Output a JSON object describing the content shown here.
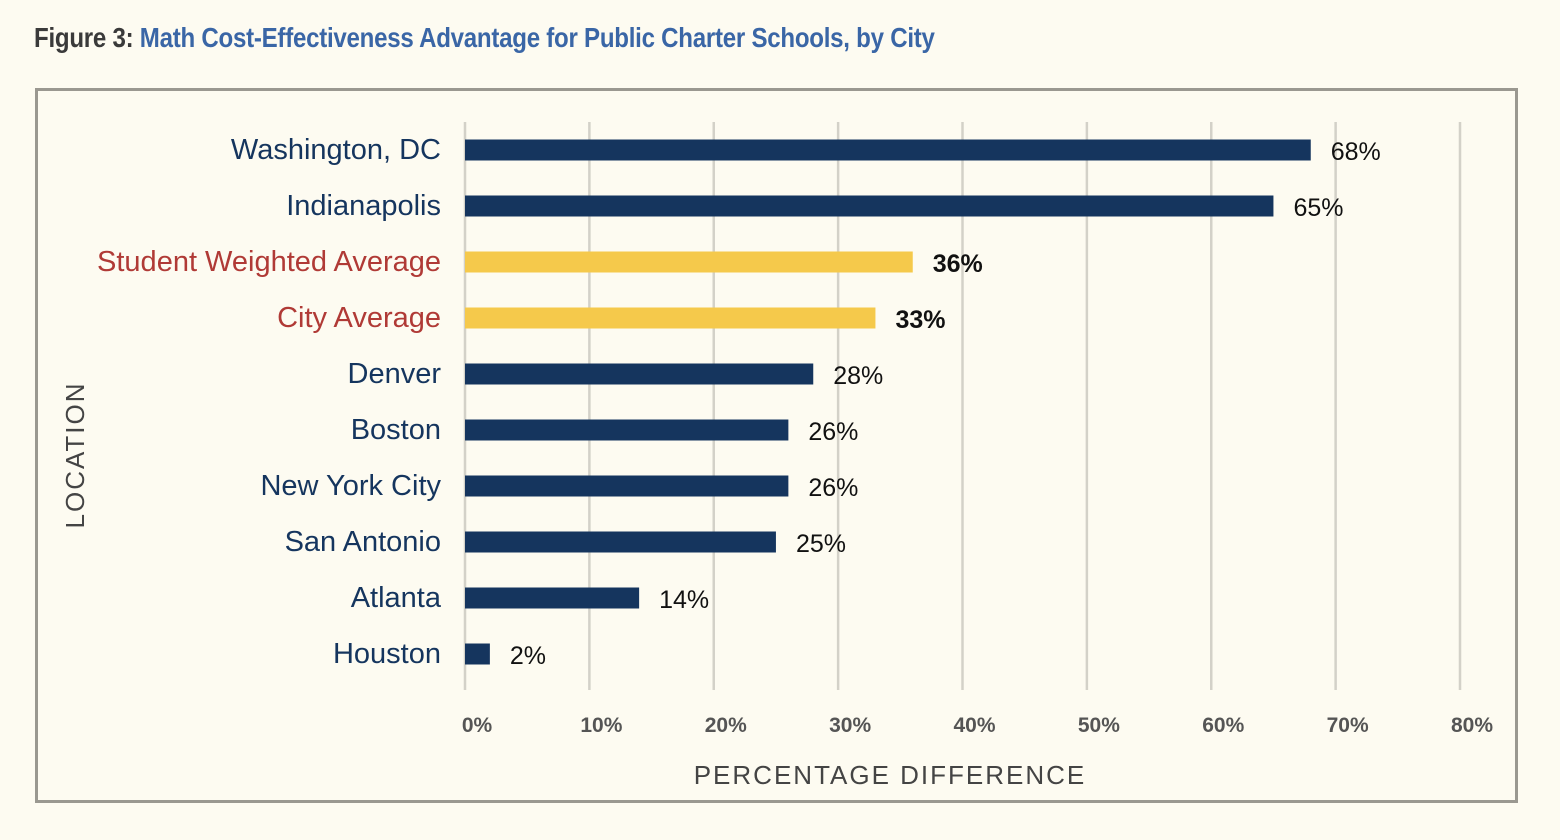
{
  "figure": {
    "label": "Figure 3:",
    "title": "Math Cost-Effectiveness Advantage for Public Charter Schools, by City"
  },
  "chart_data": {
    "type": "bar",
    "orientation": "horizontal",
    "xlabel": "PERCENTAGE DIFFERENCE",
    "ylabel": "LOCATION",
    "xlim": [
      0,
      80
    ],
    "xticks": [
      "0%",
      "10%",
      "20%",
      "30%",
      "40%",
      "50%",
      "60%",
      "70%",
      "80%"
    ],
    "grid": true,
    "categories": [
      "Washington, DC",
      "Indianapolis",
      "Student Weighted Average",
      "City Average",
      "Denver",
      "Boston",
      "New York City",
      "San Antonio",
      "Atlanta",
      "Houston"
    ],
    "values": [
      68,
      65,
      36,
      33,
      28,
      26,
      26,
      25,
      14,
      2
    ],
    "value_labels": [
      "68%",
      "65%",
      "36%",
      "33%",
      "28%",
      "26%",
      "26%",
      "25%",
      "14%",
      "2%"
    ],
    "highlight": [
      false,
      false,
      true,
      true,
      false,
      false,
      false,
      false,
      false,
      false
    ],
    "colors": {
      "bar": "#15355e",
      "highlight_bar": "#f5c94b",
      "category_text": "#15355e",
      "highlight_text": "#b03a36",
      "grid": "#d3d1c8",
      "tick_text": "#555555",
      "axis_title": "#444444"
    }
  }
}
